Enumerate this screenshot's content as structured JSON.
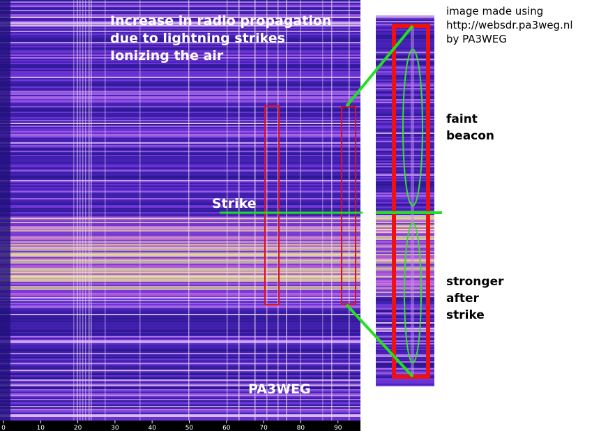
{
  "waterfall": {
    "title_lines": [
      "Increase in radio propagation",
      "due to lightning strikes",
      "Ionizing the air"
    ],
    "strike_label": "Strike",
    "watermark": "PA3WEG",
    "axis_ticks": [
      0,
      10,
      20,
      30,
      40,
      50,
      60,
      70,
      80,
      90
    ]
  },
  "credit": {
    "lines": [
      "image made using",
      "http://websdr.pa3weg.nl",
      "by PA3WEG"
    ]
  },
  "zoom": {
    "upper_label": [
      "faint",
      "beacon"
    ],
    "lower_label": [
      "stronger",
      "after",
      "strike"
    ]
  }
}
